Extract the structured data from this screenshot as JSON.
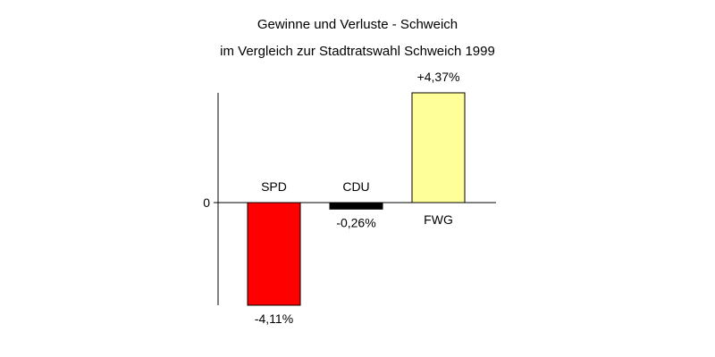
{
  "chart_data": {
    "type": "bar",
    "title": "Gewinne und Verluste - Schweich",
    "subtitle": "im Vergleich zur Stadtratswahl Schweich 1999",
    "categories": [
      "SPD",
      "CDU",
      "FWG"
    ],
    "values": [
      -4.11,
      -0.26,
      4.37
    ],
    "value_labels": [
      "-4,11%",
      "-0,26%",
      "+4,37%"
    ],
    "colors": [
      "#ff0000",
      "#000000",
      "#ffff99"
    ],
    "zero_tick_label": "0",
    "ylim": [
      -4.11,
      4.37
    ],
    "grid": false,
    "legend": "none"
  }
}
